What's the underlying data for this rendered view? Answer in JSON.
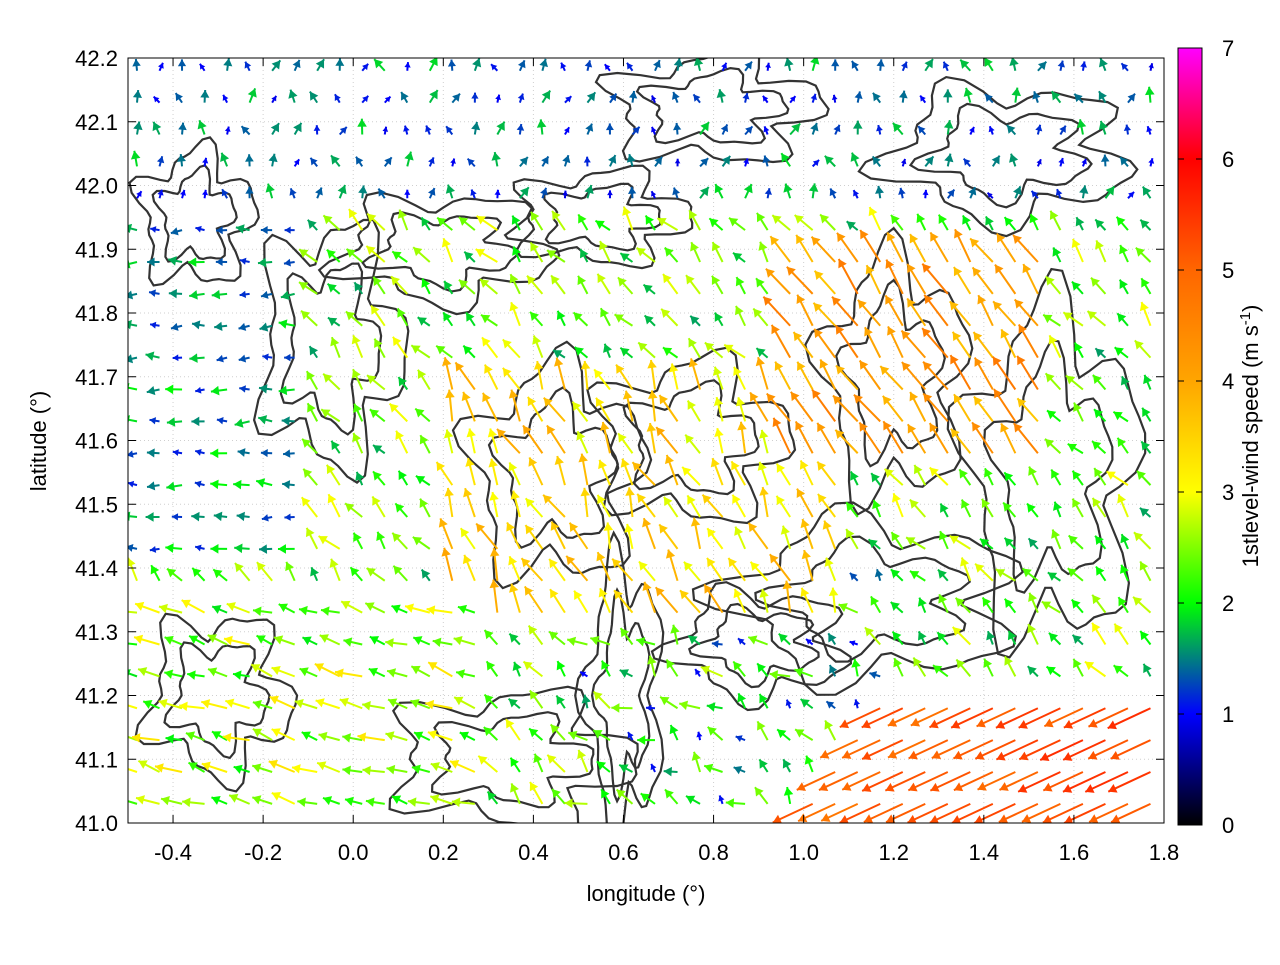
{
  "chart_data": {
    "type": "vector-field",
    "xlabel": "longitude (°)",
    "ylabel": "latitude (°)",
    "xlim": [
      -0.5,
      1.8
    ],
    "ylim": [
      41.0,
      42.2
    ],
    "x_ticks": [
      -0.4,
      -0.2,
      0.0,
      0.2,
      0.4,
      0.6,
      0.8,
      1.0,
      1.2,
      1.4,
      1.6,
      1.8
    ],
    "x_tick_labels": [
      "-0.4",
      "-0.2",
      "0.0",
      "0.2",
      "0.4",
      "0.6",
      "0.8",
      "1.0",
      "1.2",
      "1.4",
      "1.6",
      "1.8"
    ],
    "y_ticks": [
      41.0,
      41.1,
      41.2,
      41.3,
      41.4,
      41.5,
      41.6,
      41.7,
      41.8,
      41.9,
      42.0,
      42.1,
      42.2
    ],
    "y_tick_labels": [
      "41.0",
      "41.1",
      "41.2",
      "41.3",
      "41.4",
      "41.5",
      "41.6",
      "41.7",
      "41.8",
      "41.9",
      "42.0",
      "42.1",
      "42.2"
    ],
    "colorbar": {
      "label": "1stlevel-wind speed (m s-1)",
      "label_main": "1stlevel-wind speed (m s",
      "label_sup": "-1",
      "label_end": ")",
      "range": [
        0,
        7
      ],
      "ticks": [
        0,
        1,
        2,
        3,
        4,
        5,
        6,
        7
      ],
      "tick_labels": [
        "0",
        "1",
        "2",
        "3",
        "4",
        "5",
        "6",
        "7"
      ],
      "stops": [
        {
          "value": 0,
          "color": "#000000"
        },
        {
          "value": 1,
          "color": "#0000ff"
        },
        {
          "value": 2,
          "color": "#00ff00"
        },
        {
          "value": 3,
          "color": "#ffff00"
        },
        {
          "value": 4,
          "color": "#ffa500"
        },
        {
          "value": 5,
          "color": "#ff6600"
        },
        {
          "value": 6,
          "color": "#ff0000"
        },
        {
          "value": 7,
          "color": "#ff00ff"
        }
      ]
    },
    "grid": "dotted",
    "contour_color": "#333333",
    "wind_regions": [
      {
        "region": "west (lon -0.5 to -0.1, lat 41.4 to 41.9)",
        "direction_deg_to": 180,
        "speed_ms": 1.5
      },
      {
        "region": "southwest (lon -0.5 to 0.3, lat 41.0 to 41.35)",
        "direction_deg_to": 165,
        "speed_ms": 2.6
      },
      {
        "region": "central (lon 0.2 to 1.0, lat 41.3 to 41.7)",
        "direction_deg_to": 120,
        "speed_ms": 3.5
      },
      {
        "region": "northeast (lon 1.0 to 1.5, lat 41.6 to 41.9)",
        "direction_deg_to": 125,
        "speed_ms": 4.3
      },
      {
        "region": "southeast (lon 1.0 to 1.8, lat 41.0 to 41.2)",
        "direction_deg_to": 210,
        "speed_ms": 5.2
      },
      {
        "region": "north (lon -0.5 to 1.8, lat 41.95 to 42.2)",
        "direction_deg_to": 100,
        "speed_ms": 1.3
      }
    ]
  }
}
